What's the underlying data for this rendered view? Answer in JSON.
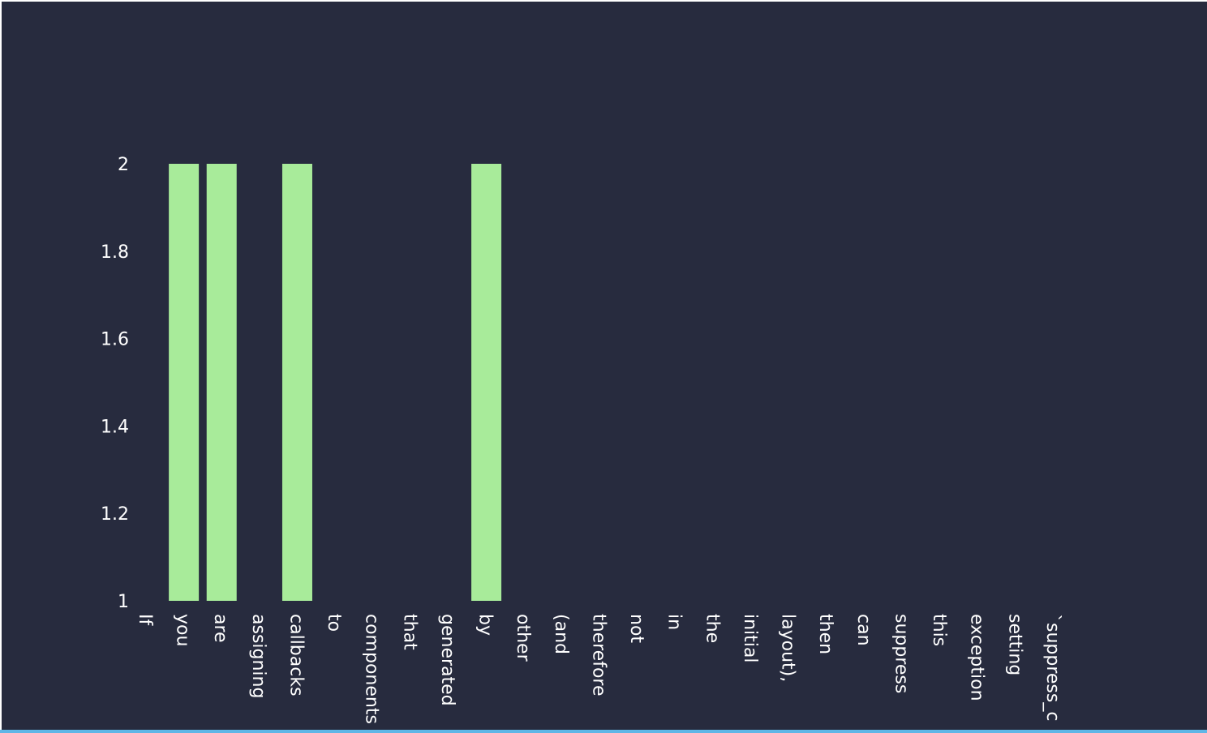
{
  "colors": {
    "background": "#272b3e",
    "bar": "#a8eb9a",
    "text": "#ffffff",
    "bottom_line": "#5fb6e6"
  },
  "chart_data": {
    "type": "bar",
    "categories": [
      "If",
      "you",
      "are",
      "assigning",
      "callbacks",
      "to",
      "components",
      "that",
      "generated",
      "by",
      "other",
      "(and",
      "therefore",
      "not",
      "in",
      "the",
      "initial",
      "layout),",
      "then",
      "can",
      "suppress",
      "this",
      "exception",
      "setting",
      "`suppress_c"
    ],
    "values": [
      1,
      2,
      2,
      1,
      2,
      1,
      1,
      1,
      1,
      2,
      1,
      1,
      1,
      1,
      1,
      1,
      1,
      1,
      1,
      1,
      1,
      1,
      1,
      1,
      1
    ],
    "yticks": [
      "1",
      "1.2",
      "1.4",
      "1.6",
      "1.8",
      "2"
    ],
    "ylim": [
      1,
      2
    ],
    "title": "",
    "xlabel": "",
    "ylabel": "",
    "grid": false,
    "legend": "none"
  }
}
